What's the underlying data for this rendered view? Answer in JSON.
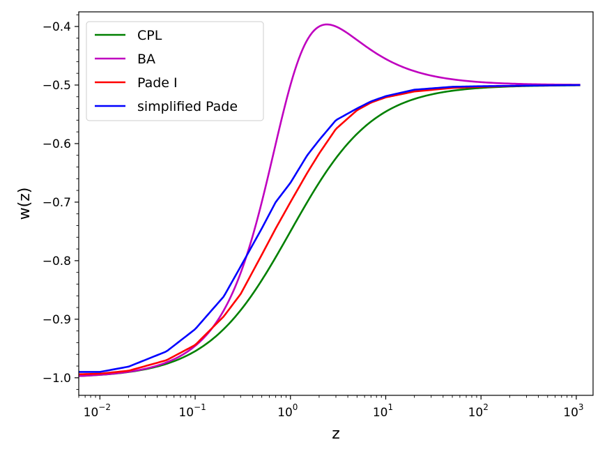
{
  "chart_data": {
    "type": "line",
    "title": "",
    "xlabel": "z",
    "ylabel": "w(z)",
    "xscale": "log",
    "xlim": [
      0.006,
      1500
    ],
    "ylim": [
      -1.03,
      -0.375
    ],
    "x_ticks": [
      {
        "value": 0.01,
        "base": "10",
        "exp": "−2"
      },
      {
        "value": 0.1,
        "base": "10",
        "exp": "−1"
      },
      {
        "value": 1,
        "base": "10",
        "exp": "0"
      },
      {
        "value": 10,
        "base": "10",
        "exp": "1"
      },
      {
        "value": 100,
        "base": "10",
        "exp": "2"
      },
      {
        "value": 1000,
        "base": "10",
        "exp": "3"
      }
    ],
    "y_ticks": [
      {
        "value": -1.0,
        "label": "−1.0"
      },
      {
        "value": -0.9,
        "label": "−0.9"
      },
      {
        "value": -0.8,
        "label": "−0.8"
      },
      {
        "value": -0.7,
        "label": "−0.7"
      },
      {
        "value": -0.6,
        "label": "−0.6"
      },
      {
        "value": -0.5,
        "label": "−0.5"
      },
      {
        "value": -0.4,
        "label": "−0.4"
      }
    ],
    "legend_position": "top-left",
    "series": [
      {
        "name": "CPL",
        "color": "#008000",
        "w0": -1.0,
        "wa": 0.5,
        "x": [
          0.006,
          0.01,
          0.02,
          0.05,
          0.1,
          0.2,
          0.3,
          0.5,
          0.7,
          1,
          1.5,
          2,
          3,
          5,
          7,
          10,
          20,
          50,
          100,
          300,
          1100
        ],
        "y": [
          -0.997,
          -0.995,
          -0.99,
          -0.976,
          -0.955,
          -0.917,
          -0.885,
          -0.833,
          -0.794,
          -0.75,
          -0.7,
          -0.667,
          -0.625,
          -0.583,
          -0.563,
          -0.545,
          -0.524,
          -0.51,
          -0.505,
          -0.502,
          -0.5
        ]
      },
      {
        "name": "BA",
        "color": "#bf00bf",
        "w0": -1.0,
        "wa": 0.5,
        "x": [
          0.006,
          0.01,
          0.02,
          0.05,
          0.1,
          0.2,
          0.3,
          0.5,
          0.7,
          1,
          1.5,
          2,
          2.414,
          3,
          5,
          7,
          10,
          20,
          50,
          100,
          300,
          1100
        ],
        "y": [
          -0.997,
          -0.995,
          -0.99,
          -0.974,
          -0.945,
          -0.873,
          -0.789,
          -0.633,
          -0.528,
          -0.45,
          -0.41,
          -0.4,
          -0.396,
          -0.4,
          -0.431,
          -0.453,
          -0.47,
          -0.488,
          -0.496,
          -0.498,
          -0.499,
          -0.5
        ]
      },
      {
        "name": "Pade I",
        "color": "#ff0000",
        "x": [
          0.006,
          0.01,
          0.02,
          0.05,
          0.1,
          0.2,
          0.3,
          0.5,
          0.7,
          1,
          1.5,
          2,
          3,
          5,
          7,
          10,
          20,
          50,
          100,
          300,
          1100
        ],
        "y": [
          -0.994,
          -0.993,
          -0.988,
          -0.97,
          -0.944,
          -0.895,
          -0.857,
          -0.79,
          -0.745,
          -0.7,
          -0.65,
          -0.617,
          -0.575,
          -0.543,
          -0.53,
          -0.521,
          -0.511,
          -0.505,
          -0.503,
          -0.501,
          -0.5
        ]
      },
      {
        "name": "simplified Pade",
        "color": "#0000ff",
        "x": [
          0.006,
          0.01,
          0.02,
          0.05,
          0.1,
          0.2,
          0.3,
          0.5,
          0.7,
          1,
          1.5,
          2,
          3,
          5,
          7,
          10,
          20,
          50,
          100,
          300,
          1100
        ],
        "y": [
          -0.99,
          -0.99,
          -0.981,
          -0.955,
          -0.917,
          -0.861,
          -0.81,
          -0.745,
          -0.7,
          -0.667,
          -0.62,
          -0.594,
          -0.56,
          -0.54,
          -0.528,
          -0.519,
          -0.508,
          -0.503,
          -0.502,
          -0.501,
          -0.5
        ]
      }
    ]
  }
}
